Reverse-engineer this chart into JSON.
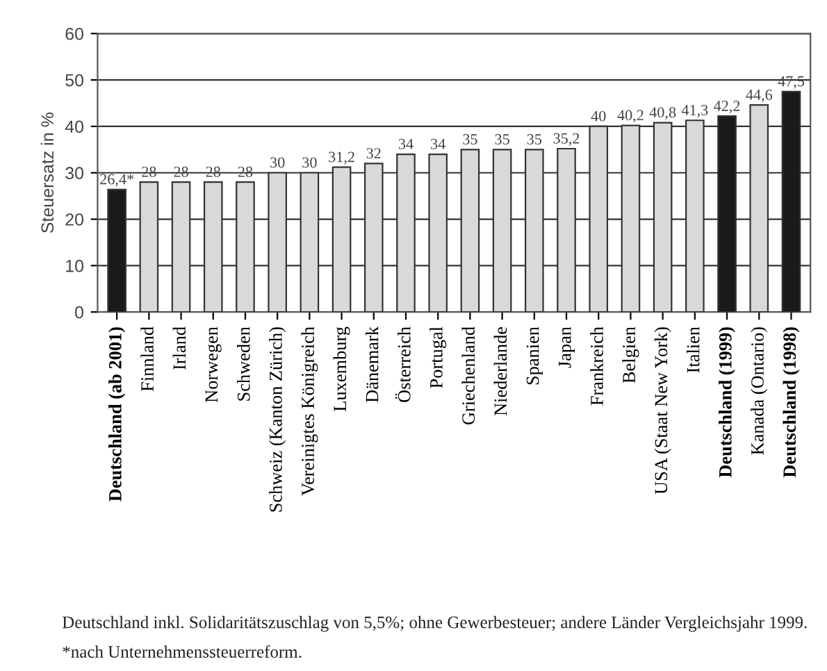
{
  "chart_data": {
    "type": "bar",
    "ylabel": "Steuersatz in %",
    "categories": [
      "Deutschland (ab 2001)",
      "Finnland",
      "Irland",
      "Norwegen",
      "Schweden",
      "Schweiz (Kanton Zürich)",
      "Vereinigtes Königreich",
      "Luxemburg",
      "Dänemark",
      "Österreich",
      "Portugal",
      "Griechenland",
      "Niederlande",
      "Spanien",
      "Japan",
      "Frankreich",
      "Belgien",
      "USA (Staat New York)",
      "Italien",
      "Deutschland (1999)",
      "Kanada (Ontario)",
      "Deutschland (1998)"
    ],
    "values": [
      26.4,
      28,
      28,
      28,
      28,
      30,
      30,
      31.2,
      32,
      34,
      34,
      35,
      35,
      35,
      35.2,
      40,
      40.2,
      40.8,
      41.3,
      42.2,
      44.6,
      47.5
    ],
    "value_labels": [
      "26,4*",
      "28",
      "28",
      "28",
      "28",
      "30",
      "30",
      "31,2",
      "32",
      "34",
      "34",
      "35",
      "35",
      "35",
      "35,2",
      "40",
      "40,2",
      "40,8",
      "41,3",
      "42,2",
      "44,6",
      "47,5"
    ],
    "colors": [
      "#1a1a1a",
      "#d9d9d9",
      "#d9d9d9",
      "#d9d9d9",
      "#d9d9d9",
      "#d9d9d9",
      "#d9d9d9",
      "#d9d9d9",
      "#d9d9d9",
      "#d9d9d9",
      "#d9d9d9",
      "#d9d9d9",
      "#d9d9d9",
      "#d9d9d9",
      "#d9d9d9",
      "#d9d9d9",
      "#d9d9d9",
      "#d9d9d9",
      "#d9d9d9",
      "#1a1a1a",
      "#d9d9d9",
      "#1a1a1a"
    ],
    "ylim": [
      0,
      60
    ],
    "yticks": [
      0,
      10,
      20,
      30,
      40,
      50,
      60
    ],
    "grid": "y",
    "annotations": [
      "Deutschland inkl. Solidaritätszuschlag von 5,5%; ohne Gewerbesteuer; andere Länder Vergleichsjahr 1999.",
      "*nach Unternehmenssteuerreform."
    ]
  }
}
